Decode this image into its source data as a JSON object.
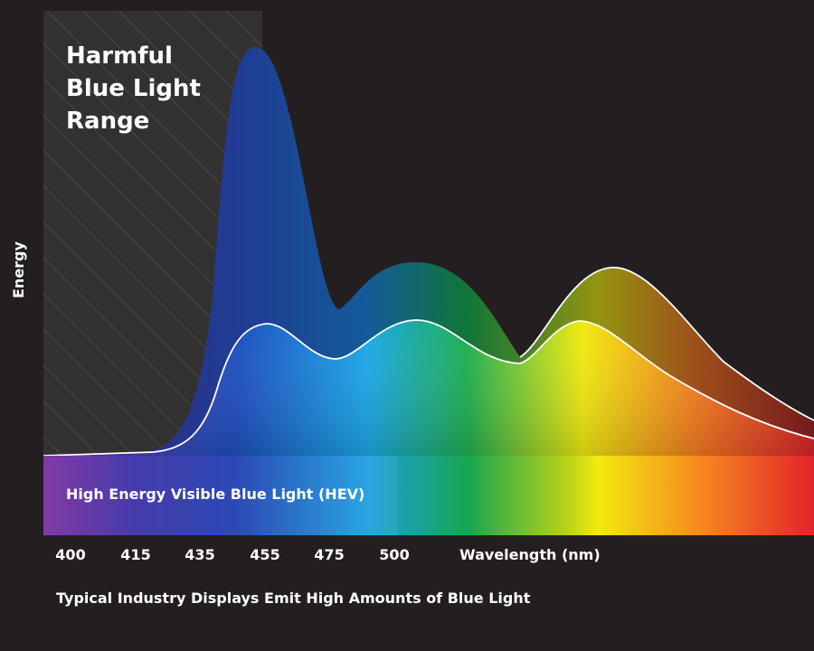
{
  "chart_data": {
    "type": "area",
    "ylabel": "Energy",
    "xlabel": "Wavelength (nm)",
    "x_ticks": [
      "400",
      "415",
      "435",
      "455",
      "475",
      "500"
    ],
    "annotations": {
      "region_title_lines": [
        "Harmful",
        "Blue Light",
        "Range"
      ],
      "band_label": "High Energy Visible Blue Light (HEV)",
      "caption": "Typical Industry Displays Emit High Amounts of Blue Light"
    },
    "highlighted_range": [
      400,
      455
    ],
    "grid": false,
    "series": [
      {
        "values_relative": [
          0,
          0.02,
          0.45,
          0.98,
          0.7,
          0.36,
          0.47,
          0.5,
          0.42,
          0.24,
          0.47,
          0.41,
          0.08
        ],
        "x": [
          400,
          430,
          440,
          448,
          462,
          475,
          490,
          505,
          520,
          540,
          560,
          600,
          700
        ]
      },
      {
        "values_relative": [
          0,
          0.03,
          0.25,
          0.34,
          0.26,
          0.3,
          0.35,
          0.28,
          0.22,
          0.36,
          0.2,
          0.05
        ],
        "x": [
          400,
          432,
          448,
          460,
          475,
          490,
          505,
          520,
          540,
          555,
          600,
          700
        ]
      }
    ],
    "colors": {
      "background": "#231f20",
      "spectrum": [
        "#7b2ea0",
        "#1f3fb0",
        "#1c9fe0",
        "#17a650",
        "#f4ea0f",
        "#f68a1f",
        "#e2232a"
      ]
    }
  }
}
